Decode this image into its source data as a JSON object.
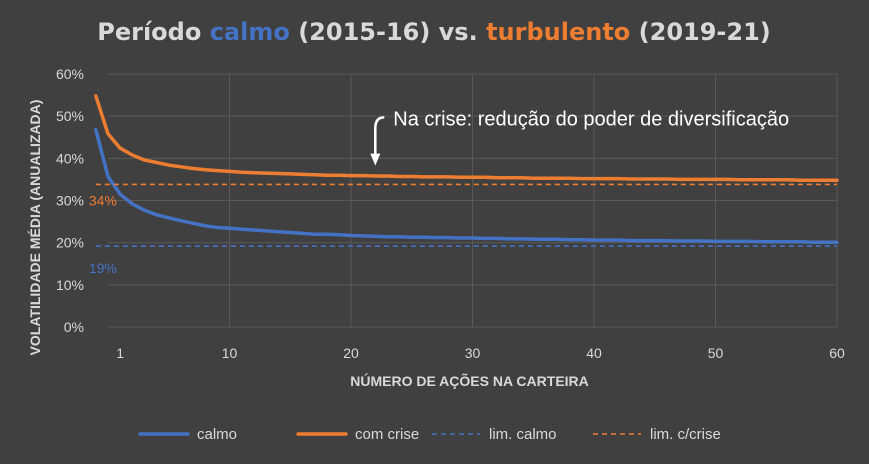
{
  "chart_data": {
    "type": "line",
    "title_parts": [
      {
        "text": "Período ",
        "color": "#d9d9d9"
      },
      {
        "text": "calmo",
        "color": "#4472c4"
      },
      {
        "text": " (2015-16) vs. ",
        "color": "#d9d9d9"
      },
      {
        "text": "turbulento",
        "color": "#ed7d31"
      },
      {
        "text": " (2019-21)",
        "color": "#d9d9d9"
      }
    ],
    "xlabel": "NÚMERO DE AÇÕES NA CARTEIRA",
    "ylabel": "VOLATILIDADE MÉDIA (ANUALIZADA)",
    "xlim": [
      0,
      60
    ],
    "ylim": [
      0,
      0.6
    ],
    "x_ticks": [
      1,
      10,
      20,
      30,
      40,
      50,
      60
    ],
    "x_tick_labels": [
      "1",
      "10",
      "20",
      "30",
      "40",
      "50",
      "60"
    ],
    "y_ticks": [
      0,
      0.1,
      0.2,
      0.3,
      0.4,
      0.5,
      0.6
    ],
    "y_tick_labels": [
      "0%",
      "10%",
      "20%",
      "30%",
      "40%",
      "50%",
      "60%"
    ],
    "vertical_gridlines_at": [
      10,
      20,
      30,
      40,
      50,
      60
    ],
    "x": [
      -1,
      0,
      1,
      2,
      3,
      4,
      5,
      6,
      7,
      8,
      9,
      10,
      11,
      12,
      13,
      14,
      15,
      16,
      17,
      18,
      19,
      20,
      21,
      22,
      23,
      24,
      25,
      26,
      27,
      28,
      29,
      30,
      31,
      32,
      33,
      34,
      35,
      36,
      37,
      38,
      39,
      40,
      41,
      42,
      43,
      44,
      45,
      46,
      47,
      48,
      49,
      50,
      51,
      52,
      53,
      54,
      55,
      56,
      57,
      58,
      59,
      60
    ],
    "series": [
      {
        "name": "calmo",
        "color": "#4472c4",
        "style": "solid",
        "values": [
          0.468,
          0.357,
          0.315,
          0.292,
          0.277,
          0.266,
          0.259,
          0.252,
          0.246,
          0.24,
          0.236,
          0.234,
          0.232,
          0.23,
          0.228,
          0.226,
          0.224,
          0.222,
          0.22,
          0.22,
          0.219,
          0.217,
          0.216,
          0.215,
          0.214,
          0.214,
          0.213,
          0.213,
          0.212,
          0.212,
          0.211,
          0.211,
          0.21,
          0.21,
          0.209,
          0.209,
          0.208,
          0.208,
          0.208,
          0.207,
          0.207,
          0.206,
          0.206,
          0.206,
          0.205,
          0.205,
          0.205,
          0.205,
          0.204,
          0.204,
          0.204,
          0.203,
          0.203,
          0.203,
          0.203,
          0.202,
          0.202,
          0.202,
          0.202,
          0.201,
          0.201,
          0.201
        ]
      },
      {
        "name": "com crise",
        "color": "#ed7d31",
        "style": "solid",
        "values": [
          0.548,
          0.458,
          0.424,
          0.408,
          0.396,
          0.39,
          0.384,
          0.38,
          0.376,
          0.373,
          0.371,
          0.369,
          0.367,
          0.366,
          0.365,
          0.364,
          0.363,
          0.362,
          0.361,
          0.36,
          0.36,
          0.359,
          0.359,
          0.358,
          0.358,
          0.357,
          0.357,
          0.356,
          0.356,
          0.356,
          0.355,
          0.355,
          0.355,
          0.354,
          0.354,
          0.354,
          0.353,
          0.353,
          0.353,
          0.353,
          0.352,
          0.352,
          0.352,
          0.352,
          0.351,
          0.351,
          0.351,
          0.351,
          0.35,
          0.35,
          0.35,
          0.35,
          0.35,
          0.349,
          0.349,
          0.349,
          0.349,
          0.349,
          0.348,
          0.348,
          0.348,
          0.348
        ]
      },
      {
        "name": "lim. calmo",
        "color": "#4472c4",
        "style": "dashed",
        "constant": 0.192,
        "label": "19%"
      },
      {
        "name": "lim. c/crise",
        "color": "#ed7d31",
        "style": "dashed",
        "constant": 0.338,
        "label": "34%"
      }
    ],
    "annotation": {
      "text": "Na crise: redução do poder de diversificação",
      "arrow_x": 22,
      "arrow_from_y": 0.49,
      "arrow_to_y": 0.385
    },
    "grid": {
      "horizontal": true,
      "vertical": true
    },
    "legend_position": "bottom"
  },
  "colors": {
    "background": "#404040",
    "grid": "#595959",
    "text": "#d9d9d9"
  }
}
